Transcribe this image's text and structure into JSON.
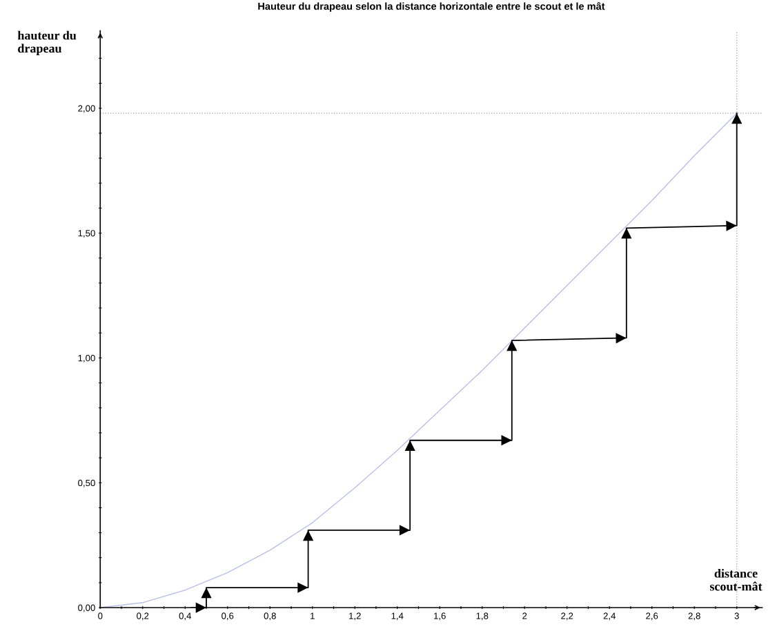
{
  "chart_data": {
    "type": "line",
    "title": "Hauteur du drapeau selon la distance horizontale entre le scout et le mât",
    "xlabel": "distance\nscout-mât",
    "ylabel": "hauteur du\ndrapeau",
    "series": [
      {
        "color": "#b8bfe8",
        "x": [
          0,
          0.2,
          0.4,
          0.6,
          0.8,
          1.0,
          1.2,
          1.4,
          1.6,
          1.8,
          2.0,
          2.2,
          2.4,
          2.6,
          2.8,
          3.0
        ],
        "values": [
          0,
          0.02,
          0.07,
          0.14,
          0.23,
          0.34,
          0.48,
          0.63,
          0.79,
          0.95,
          1.12,
          1.29,
          1.46,
          1.63,
          1.81,
          1.98
        ]
      },
      {
        "color": "#000000",
        "x": [
          0.43,
          0.5,
          0.5,
          0.98,
          0.98,
          1.46,
          1.46,
          1.94,
          1.94,
          2.48,
          2.48,
          3.0,
          3.0
        ],
        "values": [
          0,
          0,
          0.08,
          0.08,
          0.31,
          0.31,
          0.67,
          0.67,
          1.07,
          1.08,
          1.52,
          1.53,
          1.98
        ]
      }
    ],
    "xlim": [
      0,
      3.12
    ],
    "ylim": [
      0,
      2.31
    ],
    "xticks": [
      0,
      {
        "value": 0.1,
        "label": null
      },
      {
        "value": 0.2,
        "label": "0,2"
      },
      {
        "value": 0.3,
        "label": null
      },
      {
        "value": 0.4,
        "label": "0,4"
      },
      {
        "value": 0.5,
        "label": null
      },
      {
        "value": 0.6,
        "label": "0,6"
      },
      {
        "value": 0.7,
        "label": null
      },
      {
        "value": 0.8,
        "label": "0,8"
      },
      {
        "value": 0.9,
        "label": null
      },
      1,
      {
        "value": 1.1,
        "label": null
      },
      {
        "value": 1.2,
        "label": "1,2"
      },
      {
        "value": 1.3,
        "label": null
      },
      {
        "value": 1.4,
        "label": "1,4"
      },
      {
        "value": 1.5,
        "label": null
      },
      {
        "value": 1.6,
        "label": "1,6"
      },
      {
        "value": 1.7,
        "label": null
      },
      {
        "value": 1.8,
        "label": "1,8"
      },
      {
        "value": 1.9,
        "label": null
      },
      2,
      {
        "value": 2.1,
        "label": null
      },
      {
        "value": 2.2,
        "label": "2,2"
      },
      {
        "value": 2.3,
        "label": null
      },
      {
        "value": 2.4,
        "label": "2,4"
      },
      {
        "value": 2.5,
        "label": null
      },
      {
        "value": 2.6,
        "label": "2,6"
      },
      {
        "value": 2.7,
        "label": null
      },
      {
        "value": 2.8,
        "label": "2,8"
      },
      {
        "value": 2.9,
        "label": null
      },
      3
    ],
    "yticks": [
      {
        "value": 0,
        "label": "0,00"
      },
      {
        "value": 0.1,
        "label": null
      },
      {
        "value": 0.2,
        "label": null
      },
      {
        "value": 0.3,
        "label": null
      },
      {
        "value": 0.4,
        "label": null
      },
      {
        "value": 0.5,
        "label": "0,50"
      },
      {
        "value": 0.6,
        "label": null
      },
      {
        "value": 0.7,
        "label": null
      },
      {
        "value": 0.8,
        "label": null
      },
      {
        "value": 0.9,
        "label": null
      },
      {
        "value": 1.0,
        "label": "1,00"
      },
      {
        "value": 1.1,
        "label": null
      },
      {
        "value": 1.2,
        "label": null
      },
      {
        "value": 1.3,
        "label": null
      },
      {
        "value": 1.4,
        "label": null
      },
      {
        "value": 1.5,
        "label": "1,50"
      },
      {
        "value": 1.6,
        "label": null
      },
      {
        "value": 1.7,
        "label": null
      },
      {
        "value": 1.8,
        "label": null
      },
      {
        "value": 1.9,
        "label": null
      },
      {
        "value": 2.0,
        "label": "2,00"
      },
      {
        "value": 2.1,
        "label": null
      },
      {
        "value": 2.2,
        "label": null
      }
    ],
    "ref_lines": [
      {
        "axis": "y",
        "value": 1.98,
        "color": "#b0b0b0",
        "line_style": "dotted"
      },
      {
        "axis": "x",
        "value": 3.0,
        "color": "#b0b0b0",
        "line_style": "dotted"
      }
    ],
    "grid": false,
    "legend": false
  }
}
